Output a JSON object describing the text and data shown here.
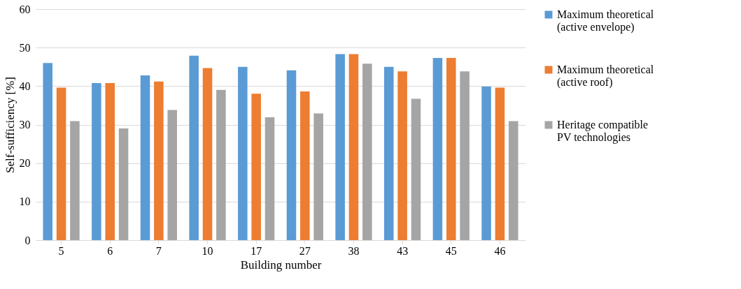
{
  "chart_data": {
    "type": "bar",
    "xlabel": "Building number",
    "ylabel": "Self-sufficiency  [%]",
    "categories": [
      "5",
      "6",
      "7",
      "10",
      "17",
      "27",
      "38",
      "43",
      "45",
      "46"
    ],
    "series": [
      {
        "name": "Maximum theoretical (active envelope)",
        "color": "#5b9bd5",
        "values": [
          46.0,
          40.8,
          42.8,
          47.9,
          45.0,
          44.1,
          48.3,
          45.0,
          47.3,
          39.9
        ]
      },
      {
        "name": "Maximum theoretical (active roof)",
        "color": "#ed7d31",
        "values": [
          39.6,
          40.8,
          41.2,
          44.7,
          38.0,
          38.6,
          48.3,
          43.8,
          47.3,
          39.6
        ]
      },
      {
        "name": "Heritage compatible PV technologies",
        "color": "#a5a5a5",
        "values": [
          30.9,
          29.0,
          33.8,
          39.0,
          31.9,
          32.9,
          45.8,
          36.7,
          43.8,
          30.9
        ]
      }
    ],
    "ylim": [
      0,
      60
    ],
    "yticks": [
      0,
      10,
      20,
      30,
      40,
      50,
      60
    ],
    "grid": "y",
    "legend": "right"
  }
}
